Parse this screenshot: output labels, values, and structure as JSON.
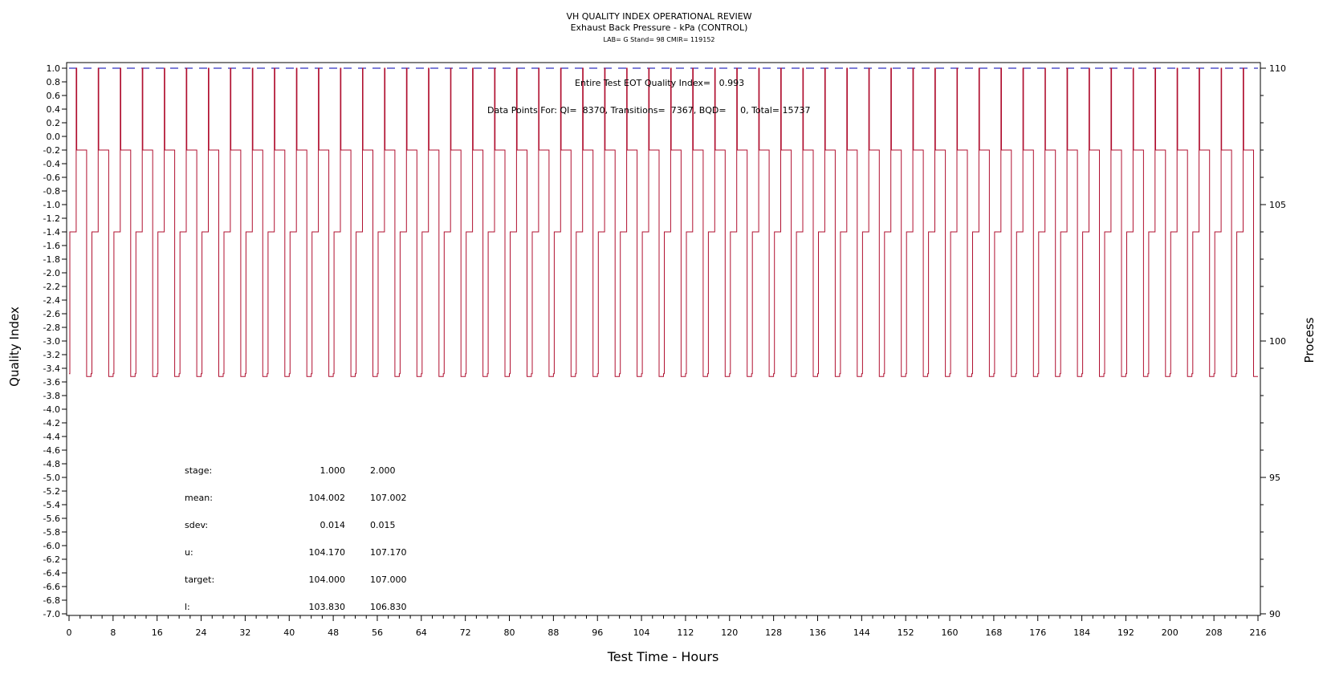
{
  "titles": {
    "line1": "VH QUALITY INDEX OPERATIONAL REVIEW",
    "line2": "Exhaust Back Pressure - kPa (CONTROL)",
    "line3": "LAB= G Stand= 98 CMIR= 119152"
  },
  "annotations": {
    "eot": "Entire Test EOT Quality Index=   0.993",
    "points": "Data Points For: QI=  8370, Transitions=  7367, BQD=     0, Total= 15737"
  },
  "stats_table": {
    "rows": [
      {
        "label": "stage:",
        "v1": "1.000",
        "v2": "2.000"
      },
      {
        "label": "mean:",
        "v1": "104.002",
        "v2": "107.002"
      },
      {
        "label": "sdev:",
        "v1": "0.014",
        "v2": "0.015"
      },
      {
        "label": "u:",
        "v1": "104.170",
        "v2": "107.170"
      },
      {
        "label": "target:",
        "v1": "104.000",
        "v2": "107.000"
      },
      {
        "label": "l:",
        "v1": "103.830",
        "v2": "106.830"
      }
    ]
  },
  "colors": {
    "process": "#b01030",
    "qi_line": "#3030c0",
    "axis": "#000000"
  },
  "chart_data": {
    "type": "line",
    "xlabel": "Test Time - Hours",
    "ylabel_left": "Quality Index",
    "ylabel_right": "Process",
    "xlim": [
      0,
      216
    ],
    "ylim_left": [
      -7.0,
      1.0
    ],
    "ylim_right": [
      90,
      110
    ],
    "x_ticks": [
      0,
      8,
      16,
      24,
      32,
      40,
      48,
      56,
      64,
      72,
      80,
      88,
      96,
      104,
      112,
      120,
      128,
      136,
      144,
      152,
      160,
      168,
      176,
      184,
      192,
      200,
      208,
      216
    ],
    "y_left_ticks": [
      "1.0",
      "0.8",
      "0.6",
      "0.4",
      "0.2",
      "0.0",
      "-0.2",
      "-0.4",
      "-0.6",
      "-0.8",
      "-1.0",
      "-1.2",
      "-1.4",
      "-1.6",
      "-1.8",
      "-2.0",
      "-2.2",
      "-2.4",
      "-2.6",
      "-2.8",
      "-3.0",
      "-3.2",
      "-3.4",
      "-3.6",
      "-3.8",
      "-4.0",
      "-4.2",
      "-4.4",
      "-4.6",
      "-4.8",
      "-5.0",
      "-5.2",
      "-5.4",
      "-5.6",
      "-5.8",
      "-6.0",
      "-6.2",
      "-6.4",
      "-6.6",
      "-6.8",
      "-7.0"
    ],
    "y_right_ticks": [
      90,
      95,
      100,
      105,
      110
    ],
    "series": [
      {
        "axis": "left",
        "description": "quality index",
        "x": [
          0,
          216
        ],
        "y": [
          1.0,
          1.0
        ],
        "style": "dashed"
      },
      {
        "axis": "right",
        "description": "process (kPa)",
        "cycle_hours": 4.0,
        "cycle_start_hours": [
          0,
          4,
          8,
          12,
          16,
          20,
          24,
          28,
          32,
          36,
          40,
          44,
          48,
          52,
          56,
          60,
          64,
          68,
          72,
          76,
          80,
          84,
          88,
          92,
          96,
          100,
          104,
          108,
          112,
          116,
          120,
          124,
          128,
          132,
          136,
          140,
          144,
          148,
          152,
          156,
          160,
          164,
          168,
          172,
          176,
          180,
          184,
          188,
          192,
          196,
          200,
          204,
          208,
          212
        ],
        "cycle_levels": [
          {
            "from_h": 0.0,
            "to_h": 0.15,
            "value": 98.8
          },
          {
            "from_h": 0.15,
            "to_h": 1.3,
            "value": 104.0
          },
          {
            "from_h": 1.3,
            "to_h": 1.4,
            "value": 110.0
          },
          {
            "from_h": 1.4,
            "to_h": 3.2,
            "value": 107.0
          },
          {
            "from_h": 3.2,
            "to_h": 4.0,
            "value": 98.7
          }
        ]
      }
    ]
  }
}
